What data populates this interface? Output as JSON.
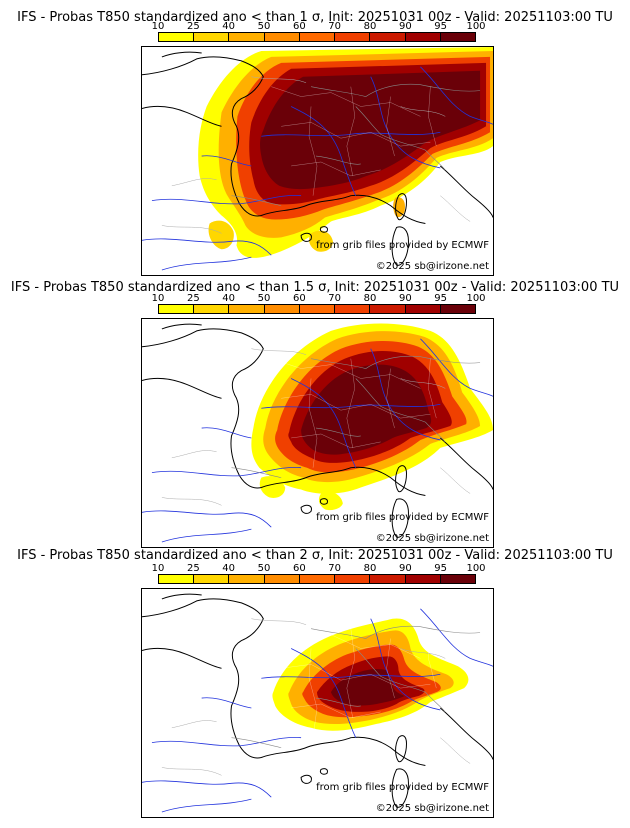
{
  "colorbar": {
    "ticks": [
      "10",
      "25",
      "40",
      "50",
      "60",
      "70",
      "80",
      "90",
      "95",
      "100"
    ],
    "colors": [
      "#ffff00",
      "#ffd700",
      "#ffb000",
      "#ff8c00",
      "#ff6a00",
      "#f04000",
      "#cc1a00",
      "#a00000",
      "#6a0008"
    ]
  },
  "panels": [
    {
      "title": "IFS - Probas T850  standardized ano < than 1 σ, Init: 20251031 00z - Valid: 20251103:00 TU",
      "source_credit": "from grib files provided by ECMWF",
      "copyright": "©2025 sb@irizone.net"
    },
    {
      "title": "IFS - Probas T850  standardized ano < than 1.5 σ, Init: 20251031 00z - Valid: 20251103:00 TU",
      "source_credit": "from grib files provided by ECMWF",
      "copyright": "©2025 sb@irizone.net"
    },
    {
      "title": "IFS - Probas T850  standardized ano < than 2 σ, Init: 20251031 00z - Valid: 20251103:00 TU",
      "source_credit": "from grib files provided by ECMWF",
      "copyright": "©2025 sb@irizone.net"
    }
  ]
}
